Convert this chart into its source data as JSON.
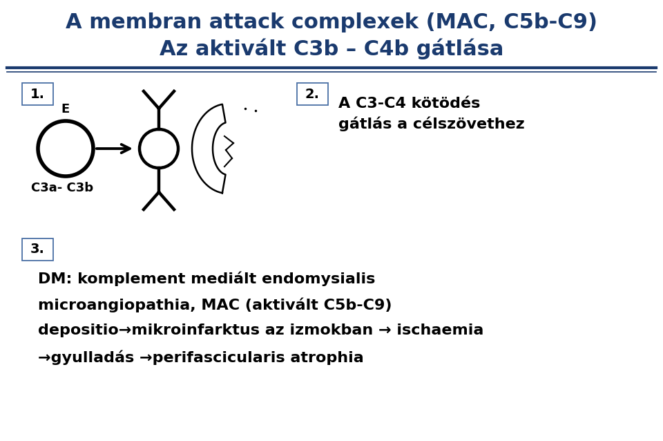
{
  "title_line1": "A membran attack complexek (MAC, C5b-C9)",
  "title_line2": "Az aktivált C3b – C4b gátlása",
  "title_color": "#1a3a6e",
  "title_fontsize": 22,
  "bg_color": "#ffffff",
  "separator_color": "#1a3a6e",
  "label1": "1.",
  "label2": "2.",
  "label3": "3.",
  "label_box_color": "#ffffff",
  "label_box_edge": "#4a6fa5",
  "text_E": "E",
  "text_C3a_C3b": "C3a- C3b",
  "text_section2_line1": "A C3-C4 kötödés",
  "text_section2_line2": "gátlás a célszövethez",
  "text_section3_line1": "DM: komplement mediált endomysialis",
  "text_section3_line2": "microangiopathia, MAC (aktivált C5b-C9)",
  "text_section3_line3": "depositio→mikroinfarktus az izmokban → ischaemia",
  "text_section3_line4": "→gyulladás →perifascicularis atrophia",
  "body_text_color": "#000000",
  "body_fontsize": 16,
  "section3_fontsize": 16,
  "label_fontsize": 14
}
